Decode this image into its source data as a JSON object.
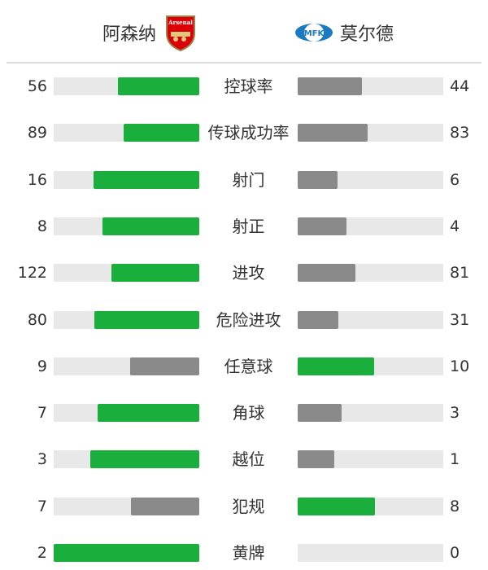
{
  "header": {
    "home_team": "阿森纳",
    "home_logo_text": "Arsenal",
    "away_team": "莫尔德",
    "away_logo_text": "MFK"
  },
  "colors": {
    "leader": "#1aaf3c",
    "trailer": "#8a8a8a",
    "track": "#e8e8e8"
  },
  "stats": [
    {
      "label": "控球率",
      "home": 56,
      "away": 44
    },
    {
      "label": "传球成功率",
      "home": 89,
      "away": 83
    },
    {
      "label": "射门",
      "home": 16,
      "away": 6
    },
    {
      "label": "射正",
      "home": 8,
      "away": 4
    },
    {
      "label": "进攻",
      "home": 122,
      "away": 81
    },
    {
      "label": "危险进攻",
      "home": 80,
      "away": 31
    },
    {
      "label": "任意球",
      "home": 9,
      "away": 10
    },
    {
      "label": "角球",
      "home": 7,
      "away": 3
    },
    {
      "label": "越位",
      "home": 3,
      "away": 1
    },
    {
      "label": "犯规",
      "home": 7,
      "away": 8
    },
    {
      "label": "黄牌",
      "home": 2,
      "away": 0
    }
  ]
}
